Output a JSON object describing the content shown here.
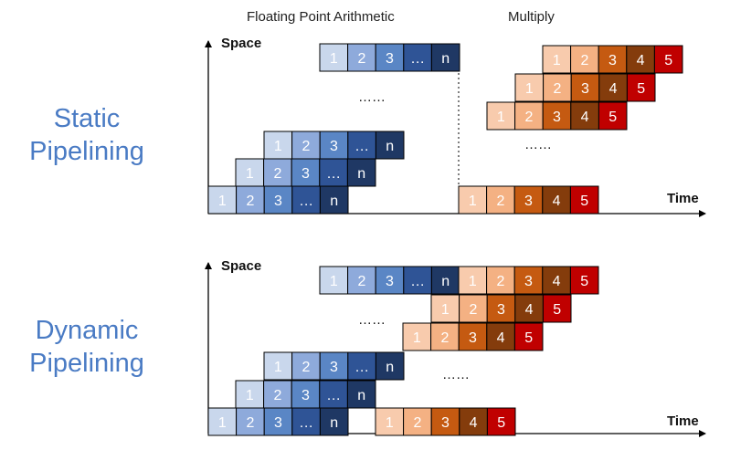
{
  "headers": {
    "floating_point": "Floating Point Arithmetic",
    "multiply": "Multiply"
  },
  "sections": {
    "static": {
      "line1": "Static",
      "line2": "Pipelining"
    },
    "dynamic": {
      "line1": "Dynamic",
      "line2": "Pipelining"
    }
  },
  "axis": {
    "space": "Space",
    "time": "Time"
  },
  "ellipsis": "……",
  "stage_labels": {
    "fp": [
      "1",
      "2",
      "3",
      "…",
      "n"
    ],
    "mul": [
      "1",
      "2",
      "3",
      "4",
      "5"
    ]
  },
  "colors": {
    "fp": [
      "#c9d7ec",
      "#8eaadb",
      "#5a86c5",
      "#2f5496",
      "#1f3864"
    ],
    "mul": [
      "#f8cbad",
      "#f4b183",
      "#c55a11",
      "#843c0c",
      "#c00000"
    ]
  }
}
